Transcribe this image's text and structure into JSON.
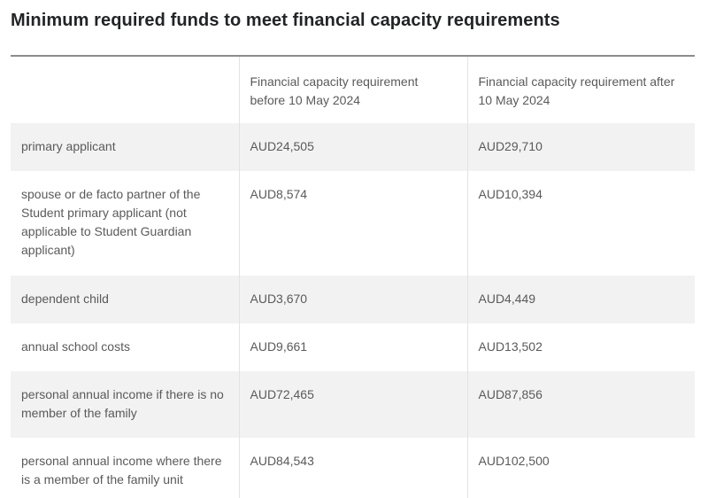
{
  "title": "Minimum required funds to meet financial capacity requirements",
  "table": {
    "headers": [
      "",
      "Financial capacity requirement before 10 May 2024",
      "Financial capacity requirement after 10 May 2024"
    ],
    "rows": [
      [
        "primary applicant",
        "AUD24,505",
        "AUD29,710"
      ],
      [
        "spouse or de facto partner of the Student primary applicant (not applicable to Student Guardian applicant)",
        "AUD8,574",
        "AUD10,394"
      ],
      [
        "dependent child",
        "AUD3,670",
        "AUD4,449"
      ],
      [
        "annual school costs",
        "AUD9,661",
        "AUD13,502"
      ],
      [
        "personal annual income if there is no member of the family",
        "AUD72,465",
        "AUD87,856"
      ],
      [
        "personal annual income where there is a member of the family unit",
        "AUD84,543",
        "AUD102,500"
      ]
    ]
  }
}
